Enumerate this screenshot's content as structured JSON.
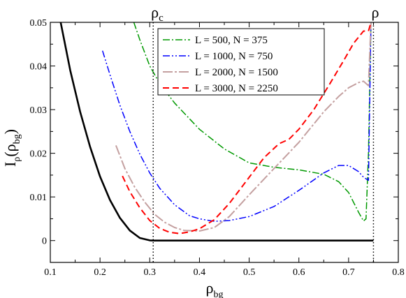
{
  "chart_data": {
    "type": "line",
    "xlabel": "ρ",
    "xlabel_sub": "bg",
    "ylabel": "I",
    "ylabel_sub": "ρ",
    "ylabel_paren_sub": "bg",
    "xlim": [
      0.1,
      0.8
    ],
    "ylim": [
      -0.005,
      0.05
    ],
    "xticks": [
      0.1,
      0.2,
      0.3,
      0.4,
      0.5,
      0.6,
      0.7,
      0.8
    ],
    "xtick_labels": [
      "0.1",
      "0.2",
      "0.3",
      "0.4",
      "0.5",
      "0.6",
      "0.7",
      "0.8"
    ],
    "yticks": [
      0,
      0.01,
      0.02,
      0.03,
      0.04,
      0.05
    ],
    "ytick_labels": [
      "0",
      "0.01",
      "0.02",
      "0.03",
      "0.04",
      "0.05"
    ],
    "grid": false,
    "legend_position": "top-right",
    "annotations": [
      {
        "text": "ρ",
        "sub": "c",
        "x": 0.307
      },
      {
        "text": "ρ",
        "sub": "",
        "x": 0.75
      }
    ],
    "vlines": [
      0.307,
      0.75
    ],
    "series": [
      {
        "name": "",
        "color": "#000000",
        "dash": "",
        "width": 2.6,
        "x": [
          0.12,
          0.14,
          0.16,
          0.18,
          0.2,
          0.22,
          0.24,
          0.26,
          0.28,
          0.3,
          0.307,
          0.32,
          0.4,
          0.5,
          0.6,
          0.7,
          0.75
        ],
        "y": [
          0.0505,
          0.039,
          0.0295,
          0.0215,
          0.0147,
          0.0093,
          0.0052,
          0.0023,
          0.0006,
          5e-05,
          0.0,
          0.0,
          0.0,
          0.0,
          0.0,
          0.0,
          0.0
        ]
      },
      {
        "name": "L = 500, N = 375",
        "color": "#009900",
        "dash": "10 3 2 3",
        "width": 1.5,
        "x": [
          0.268,
          0.28,
          0.3,
          0.32,
          0.35,
          0.4,
          0.45,
          0.5,
          0.55,
          0.6,
          0.65,
          0.68,
          0.7,
          0.72,
          0.73,
          0.735,
          0.74,
          0.745
        ],
        "y": [
          0.05,
          0.046,
          0.04,
          0.036,
          0.0315,
          0.0255,
          0.021,
          0.0178,
          0.0168,
          0.0162,
          0.0152,
          0.0135,
          0.011,
          0.0065,
          0.0045,
          0.005,
          0.02,
          0.05
        ]
      },
      {
        "name": "L = 1000, N = 750",
        "color": "#0000ff",
        "dash": "10 3 2 3 2 3",
        "width": 1.5,
        "x": [
          0.205,
          0.22,
          0.24,
          0.26,
          0.28,
          0.3,
          0.32,
          0.35,
          0.38,
          0.4,
          0.43,
          0.46,
          0.5,
          0.55,
          0.6,
          0.65,
          0.68,
          0.7,
          0.72,
          0.73,
          0.74,
          0.745
        ],
        "y": [
          0.0435,
          0.038,
          0.031,
          0.025,
          0.0198,
          0.0155,
          0.012,
          0.0082,
          0.0057,
          0.005,
          0.0044,
          0.0046,
          0.0055,
          0.0078,
          0.0115,
          0.0155,
          0.0172,
          0.0172,
          0.0158,
          0.0145,
          0.0138,
          0.05
        ]
      },
      {
        "name": "L = 2000, N = 1500",
        "color": "#c4a0a0",
        "dash": "14 3 3 3",
        "width": 2,
        "x": [
          0.232,
          0.25,
          0.27,
          0.29,
          0.31,
          0.33,
          0.35,
          0.37,
          0.4,
          0.43,
          0.46,
          0.5,
          0.55,
          0.6,
          0.65,
          0.68,
          0.7,
          0.72,
          0.73,
          0.74,
          0.745
        ],
        "y": [
          0.0218,
          0.0165,
          0.0122,
          0.0088,
          0.006,
          0.0042,
          0.003,
          0.0023,
          0.0022,
          0.003,
          0.0055,
          0.0105,
          0.0165,
          0.0225,
          0.0295,
          0.033,
          0.035,
          0.0362,
          0.0365,
          0.0355,
          0.05
        ]
      },
      {
        "name": "L = 3000, N = 2250",
        "color": "#ff0000",
        "dash": "9 5",
        "width": 2,
        "x": [
          0.245,
          0.26,
          0.28,
          0.3,
          0.32,
          0.34,
          0.36,
          0.38,
          0.4,
          0.43,
          0.46,
          0.5,
          0.53,
          0.56,
          0.58,
          0.6,
          0.63,
          0.66,
          0.69,
          0.71,
          0.73,
          0.74,
          0.745
        ],
        "y": [
          0.0148,
          0.0112,
          0.0075,
          0.0046,
          0.0028,
          0.0019,
          0.0016,
          0.002,
          0.0027,
          0.0048,
          0.0085,
          0.0145,
          0.019,
          0.0222,
          0.0232,
          0.0255,
          0.03,
          0.0355,
          0.0412,
          0.0452,
          0.048,
          0.048,
          0.05
        ]
      }
    ]
  }
}
